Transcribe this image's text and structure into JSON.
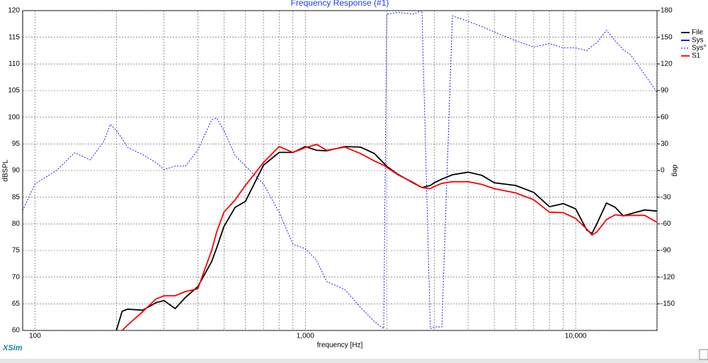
{
  "chart_data": {
    "type": "line",
    "title": "Frequency Response (#1)",
    "xlabel": "frequency [Hz]",
    "ylabel": "dBSPL",
    "y2label": "deg",
    "brand": "XSim",
    "xscale": "log",
    "grid": true,
    "legend": "upper right",
    "xlim": [
      90,
      20000
    ],
    "ylim": [
      60,
      120
    ],
    "y2lim": [
      -180,
      180
    ],
    "xticks": [
      100,
      {
        "value": 1000,
        "label": "1,000"
      },
      {
        "value": 10000,
        "label": "10,000"
      }
    ],
    "xminor": [
      200,
      300,
      400,
      500,
      600,
      700,
      800,
      900,
      2000,
      3000,
      4000,
      5000,
      6000,
      7000,
      8000,
      9000,
      20000
    ],
    "yticks": [
      60,
      65,
      70,
      75,
      80,
      85,
      90,
      95,
      100,
      105,
      110,
      115,
      120
    ],
    "y2ticks": [
      -150,
      -120,
      -90,
      -60,
      -30,
      0,
      30,
      60,
      90,
      120,
      150,
      180
    ],
    "x": [
      90,
      100,
      120,
      140,
      160,
      180,
      190,
      200,
      210,
      220,
      250,
      280,
      300,
      330,
      360,
      400,
      450,
      470,
      500,
      550,
      600,
      700,
      800,
      900,
      1000,
      1100,
      1200,
      1400,
      1600,
      1800,
      1950,
      2000,
      2200,
      2500,
      2700,
      2900,
      3000,
      3200,
      3500,
      4000,
      4500,
      5000,
      6000,
      7000,
      8000,
      9000,
      10000,
      11000,
      11500,
      12000,
      13000,
      14000,
      15000,
      16000,
      18000,
      20000
    ],
    "series": [
      {
        "name": "File",
        "color": "#000000",
        "style": "solid",
        "values": [
          null,
          null,
          null,
          null,
          null,
          null,
          null,
          60,
          63.6,
          64,
          63.8,
          65.2,
          65.6,
          64.1,
          66.2,
          68.2,
          72.9,
          75.5,
          79.5,
          83.1,
          84.2,
          91,
          93.4,
          93.4,
          94.5,
          93.8,
          93.7,
          94.5,
          94.4,
          93.2,
          91.4,
          90.8,
          89.3,
          87.7,
          86.8,
          87.2,
          87.7,
          88.4,
          89.2,
          89.7,
          89.1,
          87.7,
          87.2,
          85.9,
          83.2,
          83.8,
          82.8,
          78.8,
          78.2,
          80.1,
          83.9,
          83.1,
          81.5,
          81.9,
          82.6,
          82.4
        ]
      },
      {
        "name": "Sys",
        "color": "#0000ff",
        "style": "solid",
        "values": [
          null,
          null,
          null,
          null,
          null,
          null,
          null,
          null,
          null,
          null,
          null,
          null,
          null,
          null,
          null,
          null,
          null,
          null,
          null,
          null,
          null,
          null,
          null,
          null,
          null,
          null,
          null,
          null,
          null,
          null,
          null,
          null,
          null,
          null,
          null,
          null,
          null,
          null,
          null,
          null,
          null,
          null,
          null,
          null,
          null,
          null,
          null,
          null,
          null,
          null,
          null,
          null,
          null,
          null,
          null,
          null
        ]
      },
      {
        "name": "Sys°",
        "color": "#0000ff",
        "style": "dotted",
        "axis": "y2",
        "values": [
          -45,
          -15,
          0,
          20,
          12,
          33,
          52,
          45,
          36,
          26,
          18,
          9,
          1,
          5,
          5,
          23,
          57,
          59,
          45,
          17,
          5,
          -15,
          -47,
          -83,
          -88,
          -101,
          -125,
          -134,
          -154,
          -170,
          -178,
          176,
          178,
          176,
          180,
          -178,
          -176,
          -176,
          174,
          168,
          162,
          156,
          146,
          139,
          143,
          138,
          138,
          135,
          140,
          144,
          158,
          146,
          136,
          130,
          108,
          88
        ]
      },
      {
        "name": "S1",
        "color": "#ff0000",
        "style": "solid",
        "values": [
          null,
          null,
          null,
          null,
          null,
          null,
          null,
          null,
          60,
          61,
          63.5,
          65.9,
          66.5,
          66.5,
          67.3,
          67.8,
          75,
          78.5,
          82.2,
          84.5,
          87.2,
          91.5,
          94.5,
          93.4,
          94.3,
          94.9,
          93.8,
          94.4,
          93.2,
          91.8,
          91,
          90.6,
          89.2,
          87.8,
          86.8,
          86.6,
          87,
          87.6,
          87.9,
          87.9,
          87.4,
          86.6,
          85.8,
          84.5,
          82.2,
          82.1,
          81,
          79,
          77.9,
          78.5,
          80.8,
          81.7,
          81.5,
          81.6,
          81.6,
          80.3
        ]
      }
    ]
  }
}
